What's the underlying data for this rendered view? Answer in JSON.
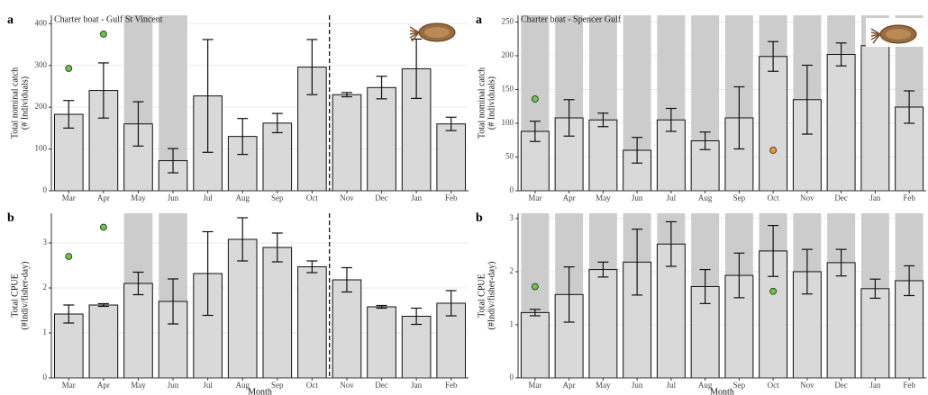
{
  "chart_data": [
    {
      "type": "bar",
      "panel": "a",
      "title": "Charter boat - Gulf St Vincent",
      "y_label": [
        "Total nominal catch",
        "(# Individuals)"
      ],
      "categories": [
        "Mar",
        "Apr",
        "May",
        "Jun",
        "Jul",
        "Aug",
        "Sep",
        "Oct",
        "Nov",
        "Dec",
        "Jan",
        "Feb"
      ],
      "values": [
        183,
        240,
        160,
        72,
        227,
        130,
        162,
        296,
        230,
        247,
        292,
        160
      ],
      "errors": [
        33,
        66,
        53,
        29,
        135,
        43,
        23,
        66,
        5,
        27,
        71,
        16
      ],
      "markers": {
        "values": [
          293,
          375,
          null,
          null,
          null,
          null,
          null,
          null,
          null,
          null,
          null,
          null
        ],
        "colors": [
          "#6cc644",
          "#6cc644",
          null,
          null,
          null,
          null,
          null,
          null,
          null,
          null,
          null,
          null
        ]
      },
      "shaded": [
        false,
        false,
        true,
        true,
        false,
        false,
        false,
        false,
        false,
        false,
        false,
        false
      ],
      "divider_after": "Oct",
      "ylim": [
        0,
        420
      ],
      "yticks": [
        0,
        100,
        200,
        300,
        400
      ],
      "grid": true,
      "color": "#d9d9d9"
    },
    {
      "type": "bar",
      "panel": "b",
      "x_label": "Month",
      "y_label": [
        "Total CPUE",
        "(#Indiv/fisher-day)"
      ],
      "categories": [
        "Mar",
        "Apr",
        "May",
        "Jun",
        "Jul",
        "Aug",
        "Sep",
        "Oct",
        "Nov",
        "Dec",
        "Jan",
        "Feb"
      ],
      "values": [
        1.42,
        1.62,
        2.1,
        1.7,
        2.32,
        3.08,
        2.9,
        2.47,
        2.18,
        1.58,
        1.37,
        1.66
      ],
      "errors": [
        0.2,
        0.03,
        0.25,
        0.5,
        0.93,
        0.48,
        0.32,
        0.13,
        0.27,
        0.03,
        0.18,
        0.28
      ],
      "markers": {
        "values": [
          2.7,
          3.35,
          null,
          null,
          null,
          null,
          null,
          null,
          null,
          null,
          null,
          null
        ],
        "colors": [
          "#6cc644",
          "#6cc644",
          null,
          null,
          null,
          null,
          null,
          null,
          null,
          null,
          null,
          null
        ]
      },
      "shaded": [
        false,
        false,
        true,
        true,
        false,
        false,
        false,
        false,
        false,
        false,
        false,
        false
      ],
      "divider_after": "Oct",
      "ylim": [
        0,
        3.66
      ],
      "yticks": [
        0,
        1,
        2,
        3
      ],
      "grid": true,
      "color": "#d9d9d9"
    },
    {
      "type": "bar",
      "panel": "a",
      "title": "Charter boat - Spencer Gulf",
      "y_label": [
        "Total nominal catch",
        "(# Individuals)"
      ],
      "categories": [
        "Mar",
        "Apr",
        "May",
        "Jun",
        "Jul",
        "Aug",
        "Sep",
        "Oct",
        "Nov",
        "Dec",
        "Jan",
        "Feb"
      ],
      "values": [
        88,
        108,
        105,
        60,
        105,
        74,
        108,
        199,
        135,
        202,
        215,
        124
      ],
      "errors": [
        15,
        27,
        10,
        19,
        17,
        13,
        46,
        22,
        51,
        17,
        null,
        24
      ],
      "markers": {
        "values": [
          136,
          null,
          null,
          null,
          null,
          null,
          null,
          60,
          null,
          null,
          null,
          null
        ],
        "colors": [
          "#6cc644",
          null,
          null,
          null,
          null,
          null,
          null,
          "#f0962e",
          null,
          null,
          null,
          null
        ]
      },
      "shaded": [
        true,
        true,
        true,
        true,
        true,
        true,
        true,
        true,
        true,
        true,
        true,
        true
      ],
      "ylim": [
        0,
        260
      ],
      "yticks": [
        0,
        50,
        100,
        150,
        200,
        250
      ],
      "grid": true,
      "color": "#d9d9d9"
    },
    {
      "type": "bar",
      "panel": "b",
      "x_label": "Month",
      "y_label": [
        "Total CPUE",
        "(#Indiv/fisher-day)"
      ],
      "categories": [
        "Mar",
        "Apr",
        "May",
        "Jun",
        "Jul",
        "Aug",
        "Sep",
        "Oct",
        "Nov",
        "Dec",
        "Jan",
        "Feb"
      ],
      "values": [
        1.23,
        1.57,
        2.04,
        2.18,
        2.52,
        1.72,
        1.93,
        2.39,
        2.0,
        2.17,
        1.68,
        1.83
      ],
      "errors": [
        0.06,
        0.52,
        0.14,
        0.62,
        0.42,
        0.32,
        0.42,
        0.48,
        0.42,
        0.25,
        0.18,
        0.28
      ],
      "markers": {
        "values": [
          1.72,
          null,
          null,
          null,
          null,
          null,
          null,
          1.63,
          null,
          null,
          null,
          null
        ],
        "colors": [
          "#6cc644",
          null,
          null,
          null,
          null,
          null,
          null,
          "#6cc644",
          null,
          null,
          null,
          null
        ]
      },
      "shaded": [
        true,
        true,
        true,
        true,
        true,
        true,
        true,
        true,
        true,
        true,
        true,
        true
      ],
      "ylim": [
        0,
        3.1
      ],
      "yticks": [
        0,
        1,
        2,
        3
      ],
      "grid": true,
      "color": "#d9d9d9"
    }
  ]
}
